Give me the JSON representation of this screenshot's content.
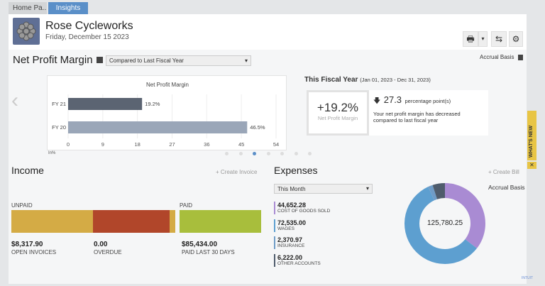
{
  "tabs": [
    {
      "label": "Home Pa..."
    },
    {
      "label": "Insights"
    }
  ],
  "company": {
    "name": "Rose Cycleworks",
    "date": "Friday, December 15 2023"
  },
  "toolbar": {
    "print_icon": "printer-icon",
    "dropdown": "▾",
    "refresh_icon": "refresh-icon",
    "settings_icon": "gear-icon"
  },
  "npm": {
    "title": "Net Profit Margin",
    "compare_select": "Compared to Last Fiscal Year",
    "basis": "Accrual Basis"
  },
  "chart_data": {
    "type": "bar",
    "orientation": "horizontal",
    "title": "Net Profit Margin",
    "categories": [
      "FY 21",
      "FY 20"
    ],
    "values": [
      19.2,
      46.5
    ],
    "data_labels": [
      "19.2%",
      "46.5%"
    ],
    "xticks": [
      "0",
      "9",
      "18",
      "27",
      "36",
      "45",
      "54"
    ],
    "xlim": [
      0,
      54
    ],
    "xlabel": "In%",
    "grid": true,
    "colors": [
      "#5b6472",
      "#9aa6b8"
    ]
  },
  "fiscal": {
    "title": "This Fiscal Year",
    "range": "(Jan 01, 2023 - Dec 31, 2023)",
    "value": "+19.2%",
    "value_label": "Net Profit Margin",
    "change": "27.3",
    "change_unit": "percentage point(s)",
    "message": "Your net profit margin has decreased compared to last fiscal year"
  },
  "whats_new": "WHAT'S NEW",
  "income": {
    "title": "Income",
    "create": "+ Create Invoice",
    "unpaid_label": "UNPAID",
    "paid_label": "PAID",
    "open_amount": "$8,317.90",
    "open_label": "OPEN INVOICES",
    "overdue_amount": "0.00",
    "overdue_label": "OVERDUE",
    "paid_amount": "$85,434.00",
    "paid_caption": "PAID LAST 30 DAYS",
    "colors": {
      "open": "#d4ab45",
      "overdue": "#b1462a",
      "paid": "#a8be3c"
    }
  },
  "expenses": {
    "title": "Expenses",
    "create": "+ Create Bill",
    "period": "This Month",
    "basis": "Accrual Basis",
    "total": "125,780.25",
    "items": [
      {
        "amount": "44,652.28",
        "label": "COST OF GOODS SOLD",
        "value": 44652.28,
        "color": "#a98bd3"
      },
      {
        "amount": "72,535.00",
        "label": "WAGES",
        "value": 72535.0,
        "color": "#5d9fd0"
      },
      {
        "amount": "2,370.97",
        "label": "INSURANCE",
        "value": 2370.97,
        "color": "#6f9cc7"
      },
      {
        "amount": "6,222.00",
        "label": "OTHER ACCOUNTS",
        "value": 6222.0,
        "color": "#4f5c6c"
      }
    ]
  },
  "footer": {
    "brand": "INTUIT"
  }
}
